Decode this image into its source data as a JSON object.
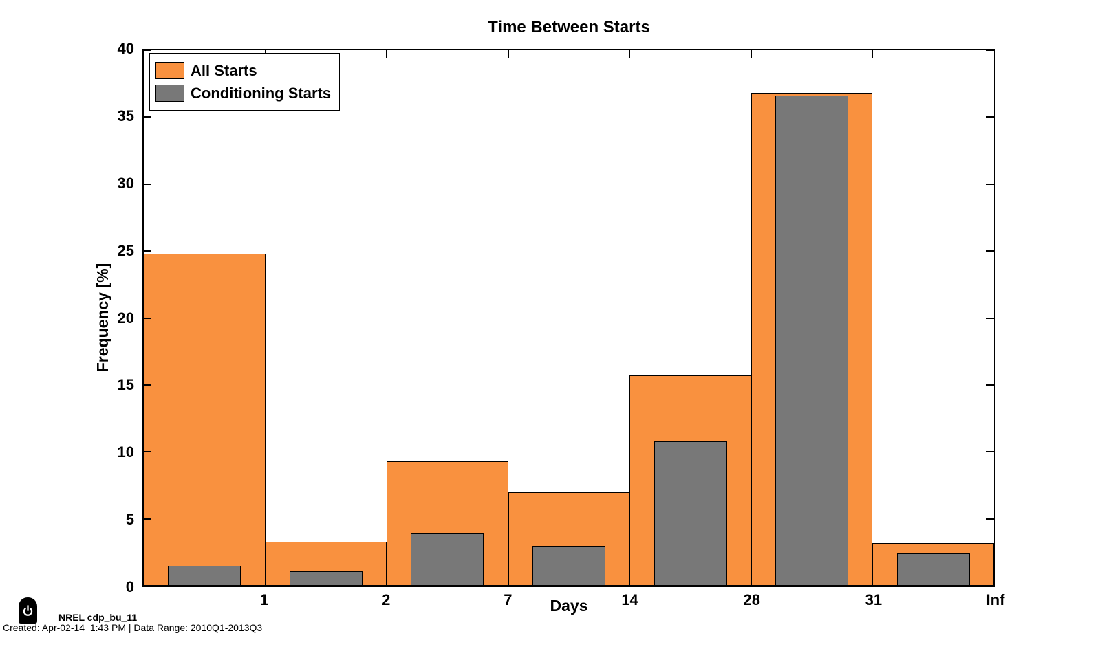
{
  "chart_data": {
    "type": "bar",
    "title": "Time Between Starts",
    "xlabel": "Days",
    "ylabel": "Frequency [%]",
    "ylim": [
      0,
      40
    ],
    "yticks": [
      0,
      5,
      10,
      15,
      20,
      25,
      30,
      35,
      40
    ],
    "xtick_labels": [
      "1",
      "2",
      "7",
      "14",
      "28",
      "31",
      "Inf"
    ],
    "grid": false,
    "legend_position": "top-left",
    "series": [
      {
        "name": "All Starts",
        "color": "#F9913F",
        "bar_width_frac": 1.0,
        "values": [
          24.8,
          3.3,
          9.3,
          7.0,
          15.7,
          36.8,
          3.2
        ]
      },
      {
        "name": "Conditioning Starts",
        "color": "#787878",
        "bar_width_frac": 0.6,
        "values": [
          1.5,
          1.1,
          3.9,
          3.0,
          10.8,
          36.6,
          2.4
        ]
      }
    ]
  },
  "footer": {
    "logo_icon": "power-icon",
    "dataset_label": "NREL cdp_bu_11",
    "created_line": "Created: Apr-02-14  1:43 PM | Data Range: 2010Q1-2013Q3"
  },
  "colors": {
    "all_starts": "#F9913F",
    "conditioning_starts": "#787878",
    "axis": "#000000",
    "background": "#FFFFFF"
  }
}
